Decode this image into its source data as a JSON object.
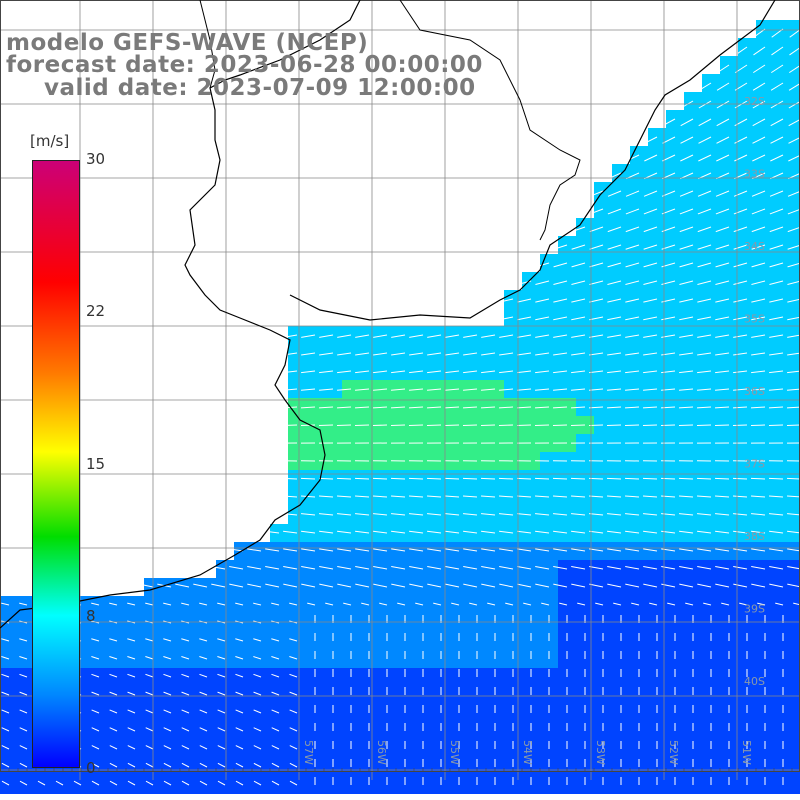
{
  "title": {
    "line1": "modelo GEFS-WAVE (NCEP)",
    "line2": "forecast date: 2023-06-28 00:00:00",
    "line3": "valid date: 2023-07-09 12:00:00"
  },
  "colorbar": {
    "unit": "[m/s]",
    "ticks": [
      "30",
      "22",
      "15",
      "8",
      "0"
    ],
    "colors": [
      "#cc0077",
      "#ff0000",
      "#ff7a00",
      "#ffff00",
      "#00dd00",
      "#00ffff",
      "#0088ff",
      "#0000ff"
    ]
  },
  "lat_labels": [
    "32S",
    "33S",
    "34S",
    "35S",
    "36S",
    "37S",
    "38S",
    "39S",
    "40S"
  ],
  "lon_labels": [
    "57W",
    "56W",
    "55W",
    "54W",
    "53W",
    "52W",
    "51W"
  ],
  "map": {
    "ocean_low_color": "#0044ff",
    "ocean_mid_color": "#00ccff",
    "ocean_high_color": "#33ee88",
    "land_color": "#ffffff",
    "coast_color": "#000000",
    "arrow_color": "#ffffff",
    "grid_color": "#888888"
  }
}
